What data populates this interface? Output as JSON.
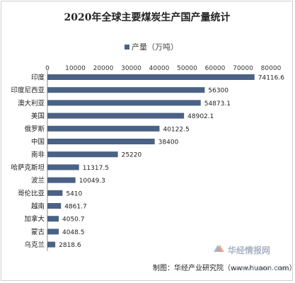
{
  "chart_data": {
    "type": "bar",
    "orientation": "horizontal",
    "title": "2020年全球主要煤炭生产国产量统计",
    "legend": "产量（万吨）",
    "legend_position": "top",
    "categories": [
      "印度",
      "印度尼西亚",
      "澳大利亚",
      "美国",
      "俄罗斯",
      "中国",
      "南非",
      "哈萨克斯坦",
      "波兰",
      "哥伦比亚",
      "越南",
      "加拿大",
      "蒙古",
      "乌克兰"
    ],
    "values": [
      74116.6,
      56300,
      54873.1,
      48902.1,
      40122.5,
      38400,
      25220,
      11317.5,
      10049.3,
      5410,
      4861.7,
      4050.7,
      4048.5,
      2818.6
    ],
    "value_labels": [
      "74116.6",
      "56300",
      "54873.1",
      "48902.1",
      "40122.5",
      "38400",
      "25220",
      "11317.5",
      "10049.3",
      "5410",
      "4861.7",
      "4050.7",
      "4048.5",
      "2818.6"
    ],
    "xlim": [
      0,
      80000
    ],
    "xticks": [
      0,
      10000,
      20000,
      30000,
      40000,
      50000,
      60000,
      70000,
      80000
    ],
    "xtick_labels": [
      "0",
      "10000",
      "20000",
      "30000",
      "40000",
      "50000",
      "60000",
      "70000",
      "80000"
    ],
    "grid": false,
    "bar_color": "#4a6285",
    "source": "制图：华经产业研究院（www.huaon.com）"
  },
  "watermark": {
    "text": "华经情报网",
    "url": "www.huaon.com",
    "icon": "huajing-logo-icon"
  }
}
